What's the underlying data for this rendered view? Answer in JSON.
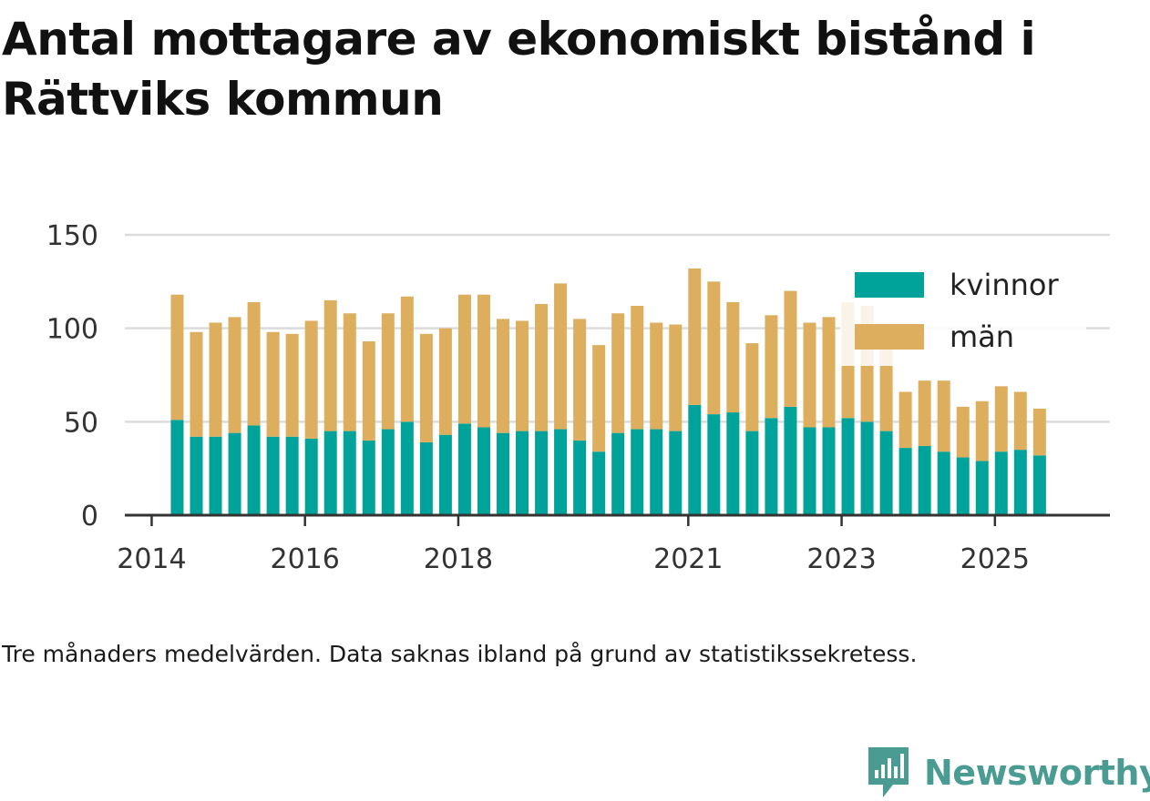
{
  "title": "Antal mottagare av ekonomiskt bistånd i Rättviks kommun",
  "footnote": "Tre månaders medelvärden. Data saknas ibland på grund av statistikssekretess.",
  "brand": {
    "name": "Newsworthy",
    "icon": "newsworthy-logo-icon",
    "color": "#4a9c92"
  },
  "chart_data": {
    "type": "bar",
    "stacked": true,
    "title": "Antal mottagare av ekonomiskt bistånd i Rättviks kommun",
    "xlabel": "",
    "ylabel": "",
    "ylim": [
      0,
      150
    ],
    "yticks": [
      0,
      50,
      100,
      150
    ],
    "xlim": [
      2013.65,
      2026.5
    ],
    "xticks": [
      {
        "value": 2014,
        "label": "2014"
      },
      {
        "value": 2016,
        "label": "2016"
      },
      {
        "value": 2018,
        "label": "2018"
      },
      {
        "value": 2021,
        "label": "2021"
      },
      {
        "value": 2023,
        "label": "2023"
      },
      {
        "value": 2025,
        "label": "2025"
      }
    ],
    "grid": true,
    "legend_position": "top-right",
    "colors": {
      "kvinnor": "#00a39a",
      "man": "#dcae5e"
    },
    "x": [
      2014.333,
      2014.583,
      2014.833,
      2015.083,
      2015.333,
      2015.583,
      2015.833,
      2016.083,
      2016.333,
      2016.583,
      2016.833,
      2017.083,
      2017.333,
      2017.583,
      2017.833,
      2018.083,
      2018.333,
      2018.583,
      2018.833,
      2019.083,
      2019.333,
      2019.583,
      2019.833,
      2020.083,
      2020.333,
      2020.583,
      2020.833,
      2021.083,
      2021.333,
      2021.583,
      2021.833,
      2022.083,
      2022.333,
      2022.583,
      2022.833,
      2023.083,
      2023.333,
      2023.583,
      2023.833,
      2024.083,
      2024.333,
      2024.583,
      2024.833,
      2025.083,
      2025.333,
      2025.583
    ],
    "series": [
      {
        "name": "kvinnor",
        "values": [
          51,
          42,
          42,
          44,
          48,
          42,
          42,
          41,
          45,
          45,
          40,
          46,
          50,
          39,
          43,
          49,
          47,
          44,
          45,
          45,
          46,
          40,
          34,
          44,
          46,
          46,
          45,
          59,
          54,
          55,
          45,
          52,
          58,
          47,
          47,
          52,
          50,
          45,
          36,
          37,
          34,
          31,
          29,
          34,
          35,
          32
        ]
      },
      {
        "name": "män",
        "values": [
          67,
          56,
          61,
          62,
          66,
          56,
          55,
          63,
          70,
          63,
          53,
          62,
          67,
          58,
          57,
          69,
          71,
          61,
          59,
          68,
          78,
          65,
          57,
          64,
          66,
          57,
          57,
          73,
          71,
          59,
          47,
          55,
          62,
          56,
          59,
          62,
          62,
          44,
          30,
          35,
          38,
          27,
          32,
          35,
          31,
          25
        ]
      }
    ]
  }
}
